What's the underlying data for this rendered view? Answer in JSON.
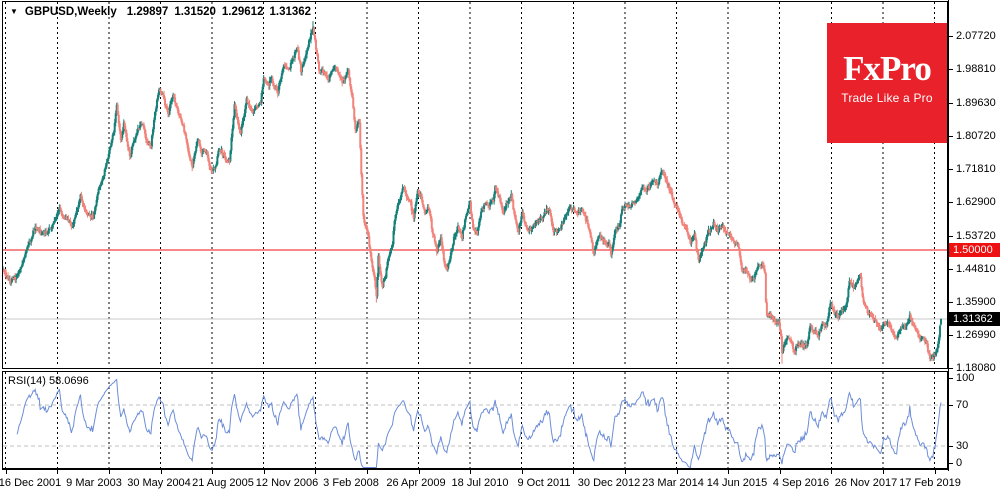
{
  "title": {
    "symbol_timeframe": "GBPUSD,Weekly",
    "open": "1.29897",
    "high": "1.31520",
    "low": "1.29612",
    "close": "1.31362"
  },
  "logo": {
    "brand": "FxPro",
    "tagline": "Trade Like a Pro",
    "bg_color": "#e8212b"
  },
  "axes": {
    "price_level_badge": "1.50000",
    "current_price_badge": "1.31362"
  },
  "rsi_panel": {
    "label": "RSI(14)",
    "value": "58.0696"
  },
  "colors": {
    "candle_up": "#178079",
    "candle_down": "#f2837b",
    "rsi_line": "#6c8dd8",
    "level_line_red": "#ee1111",
    "current_price_line": "#c8c8c8",
    "badge_black": "#000000",
    "logo_red": "#e8212b",
    "grid": "#000000",
    "rsi_level_dash": "#c0c0c0"
  },
  "chart_data": {
    "type": "candlestick",
    "title": "GBPUSD,Weekly",
    "timeframe": "weekly",
    "x_tick_labels": [
      "16 Dec 2001",
      "9 Mar 2003",
      "30 May 2004",
      "21 Aug 2005",
      "12 Nov 2006",
      "3 Feb 2008",
      "26 Apr 2009",
      "18 Jul 2010",
      "9 Oct 2011",
      "30 Dec 2012",
      "23 Mar 2014",
      "14 Jun 2015",
      "4 Sep 2016",
      "26 Nov 2017",
      "17 Feb 2019"
    ],
    "y_tick_labels": [
      "2.07720",
      "1.98810",
      "1.89630",
      "1.80720",
      "1.71810",
      "1.62900",
      "1.53720",
      "1.44810",
      "1.35900",
      "1.26990",
      "1.18080"
    ],
    "rsi_tick_labels": [
      "100",
      "70",
      "30",
      "0"
    ],
    "horizontal_level_line": 1.5,
    "current_price": 1.31362,
    "ylim_approx": [
      1.17,
      2.17
    ],
    "weeks_total": 932,
    "last_candle": {
      "open": 1.29897,
      "high": 1.3152,
      "low": 1.29612,
      "close": 1.31362
    },
    "close_path_weekly_anchors": [
      [
        0,
        1.445
      ],
      [
        7,
        1.415
      ],
      [
        13,
        1.425
      ],
      [
        20,
        1.47
      ],
      [
        27,
        1.525
      ],
      [
        32,
        1.565
      ],
      [
        38,
        1.545
      ],
      [
        45,
        1.555
      ],
      [
        51,
        1.575
      ],
      [
        56,
        1.615
      ],
      [
        60,
        1.59
      ],
      [
        64,
        1.585
      ],
      [
        69,
        1.565
      ],
      [
        77,
        1.645
      ],
      [
        83,
        1.595
      ],
      [
        90,
        1.59
      ],
      [
        95,
        1.665
      ],
      [
        100,
        1.7
      ],
      [
        106,
        1.775
      ],
      [
        110,
        1.82
      ],
      [
        113,
        1.895
      ],
      [
        117,
        1.8
      ],
      [
        120,
        1.84
      ],
      [
        126,
        1.755
      ],
      [
        133,
        1.82
      ],
      [
        139,
        1.845
      ],
      [
        143,
        1.785
      ],
      [
        147,
        1.785
      ],
      [
        151,
        1.87
      ],
      [
        155,
        1.93
      ],
      [
        159,
        1.915
      ],
      [
        164,
        1.865
      ],
      [
        169,
        1.92
      ],
      [
        174,
        1.875
      ],
      [
        179,
        1.835
      ],
      [
        186,
        1.745
      ],
      [
        188,
        1.725
      ],
      [
        193,
        1.8
      ],
      [
        197,
        1.765
      ],
      [
        202,
        1.77
      ],
      [
        206,
        1.715
      ],
      [
        211,
        1.725
      ],
      [
        215,
        1.775
      ],
      [
        220,
        1.75
      ],
      [
        225,
        1.74
      ],
      [
        230,
        1.89
      ],
      [
        236,
        1.815
      ],
      [
        242,
        1.905
      ],
      [
        248,
        1.87
      ],
      [
        252,
        1.89
      ],
      [
        256,
        1.9
      ],
      [
        259,
        1.97
      ],
      [
        263,
        1.945
      ],
      [
        267,
        1.96
      ],
      [
        273,
        1.925
      ],
      [
        279,
        2.005
      ],
      [
        284,
        1.99
      ],
      [
        288,
        2.015
      ],
      [
        292,
        2.05
      ],
      [
        296,
        1.985
      ],
      [
        302,
        2.04
      ],
      [
        308,
        2.105
      ],
      [
        311,
        2.045
      ],
      [
        314,
        1.985
      ],
      [
        319,
        1.98
      ],
      [
        323,
        1.965
      ],
      [
        327,
        1.985
      ],
      [
        331,
        1.99
      ],
      [
        337,
        1.955
      ],
      [
        343,
        1.98
      ],
      [
        347,
        1.915
      ],
      [
        350,
        1.825
      ],
      [
        354,
        1.845
      ],
      [
        356,
        1.705
      ],
      [
        358,
        1.59
      ],
      [
        360,
        1.565
      ],
      [
        363,
        1.535
      ],
      [
        365,
        1.49
      ],
      [
        367,
        1.455
      ],
      [
        369,
        1.43
      ],
      [
        371,
        1.37
      ],
      [
        373,
        1.48
      ],
      [
        375,
        1.43
      ],
      [
        377,
        1.405
      ],
      [
        380,
        1.43
      ],
      [
        382,
        1.465
      ],
      [
        387,
        1.52
      ],
      [
        390,
        1.6
      ],
      [
        394,
        1.635
      ],
      [
        398,
        1.67
      ],
      [
        400,
        1.655
      ],
      [
        403,
        1.635
      ],
      [
        405,
        1.625
      ],
      [
        408,
        1.585
      ],
      [
        412,
        1.66
      ],
      [
        415,
        1.645
      ],
      [
        419,
        1.595
      ],
      [
        423,
        1.615
      ],
      [
        427,
        1.545
      ],
      [
        431,
        1.5
      ],
      [
        435,
        1.535
      ],
      [
        439,
        1.455
      ],
      [
        441,
        1.445
      ],
      [
        444,
        1.48
      ],
      [
        448,
        1.53
      ],
      [
        452,
        1.56
      ],
      [
        456,
        1.535
      ],
      [
        460,
        1.59
      ],
      [
        464,
        1.625
      ],
      [
        467,
        1.555
      ],
      [
        471,
        1.545
      ],
      [
        475,
        1.6
      ],
      [
        479,
        1.625
      ],
      [
        483,
        1.62
      ],
      [
        487,
        1.635
      ],
      [
        489,
        1.67
      ],
      [
        493,
        1.645
      ],
      [
        497,
        1.6
      ],
      [
        501,
        1.63
      ],
      [
        505,
        1.645
      ],
      [
        509,
        1.58
      ],
      [
        512,
        1.555
      ],
      [
        516,
        1.6
      ],
      [
        520,
        1.56
      ],
      [
        524,
        1.555
      ],
      [
        528,
        1.57
      ],
      [
        532,
        1.585
      ],
      [
        536,
        1.585
      ],
      [
        540,
        1.61
      ],
      [
        543,
        1.61
      ],
      [
        547,
        1.55
      ],
      [
        551,
        1.55
      ],
      [
        555,
        1.565
      ],
      [
        559,
        1.59
      ],
      [
        563,
        1.615
      ],
      [
        567,
        1.61
      ],
      [
        571,
        1.6
      ],
      [
        575,
        1.615
      ],
      [
        579,
        1.585
      ],
      [
        583,
        1.55
      ],
      [
        587,
        1.49
      ],
      [
        591,
        1.535
      ],
      [
        595,
        1.535
      ],
      [
        598,
        1.52
      ],
      [
        602,
        1.515
      ],
      [
        604,
        1.49
      ],
      [
        608,
        1.55
      ],
      [
        612,
        1.56
      ],
      [
        615,
        1.61
      ],
      [
        619,
        1.62
      ],
      [
        623,
        1.62
      ],
      [
        627,
        1.63
      ],
      [
        631,
        1.64
      ],
      [
        635,
        1.67
      ],
      [
        639,
        1.66
      ],
      [
        643,
        1.675
      ],
      [
        647,
        1.685
      ],
      [
        651,
        1.68
      ],
      [
        655,
        1.715
      ],
      [
        659,
        1.685
      ],
      [
        663,
        1.66
      ],
      [
        667,
        1.625
      ],
      [
        671,
        1.61
      ],
      [
        675,
        1.565
      ],
      [
        679,
        1.565
      ],
      [
        683,
        1.515
      ],
      [
        687,
        1.54
      ],
      [
        691,
        1.475
      ],
      [
        694,
        1.49
      ],
      [
        697,
        1.515
      ],
      [
        701,
        1.55
      ],
      [
        704,
        1.555
      ],
      [
        706,
        1.575
      ],
      [
        710,
        1.55
      ],
      [
        714,
        1.57
      ],
      [
        718,
        1.55
      ],
      [
        722,
        1.545
      ],
      [
        726,
        1.52
      ],
      [
        730,
        1.52
      ],
      [
        734,
        1.45
      ],
      [
        738,
        1.45
      ],
      [
        740,
        1.44
      ],
      [
        742,
        1.42
      ],
      [
        746,
        1.42
      ],
      [
        750,
        1.46
      ],
      [
        754,
        1.46
      ],
      [
        757,
        1.435
      ],
      [
        758,
        1.365
      ],
      [
        759,
        1.325
      ],
      [
        763,
        1.325
      ],
      [
        767,
        1.31
      ],
      [
        771,
        1.3
      ],
      [
        773,
        1.27
      ],
      [
        774,
        1.22
      ],
      [
        776,
        1.245
      ],
      [
        778,
        1.26
      ],
      [
        782,
        1.26
      ],
      [
        786,
        1.23
      ],
      [
        788,
        1.235
      ],
      [
        792,
        1.245
      ],
      [
        796,
        1.24
      ],
      [
        800,
        1.255
      ],
      [
        802,
        1.295
      ],
      [
        806,
        1.28
      ],
      [
        810,
        1.27
      ],
      [
        814,
        1.3
      ],
      [
        818,
        1.29
      ],
      [
        822,
        1.36
      ],
      [
        826,
        1.33
      ],
      [
        830,
        1.32
      ],
      [
        834,
        1.34
      ],
      [
        838,
        1.355
      ],
      [
        841,
        1.415
      ],
      [
        845,
        1.4
      ],
      [
        849,
        1.415
      ],
      [
        852,
        1.43
      ],
      [
        855,
        1.355
      ],
      [
        859,
        1.335
      ],
      [
        863,
        1.32
      ],
      [
        867,
        1.31
      ],
      [
        871,
        1.285
      ],
      [
        875,
        1.305
      ],
      [
        879,
        1.305
      ],
      [
        883,
        1.285
      ],
      [
        887,
        1.26
      ],
      [
        891,
        1.285
      ],
      [
        895,
        1.295
      ],
      [
        899,
        1.3
      ],
      [
        901,
        1.32
      ],
      [
        905,
        1.3
      ],
      [
        909,
        1.27
      ],
      [
        913,
        1.26
      ],
      [
        917,
        1.255
      ],
      [
        921,
        1.205
      ],
      [
        925,
        1.21
      ],
      [
        928,
        1.23
      ],
      [
        930,
        1.265
      ],
      [
        931,
        1.3
      ],
      [
        932,
        1.31362
      ]
    ],
    "key_extremes": [
      {
        "week": 308,
        "high": 2.118
      },
      {
        "week": 230,
        "high": 1.902
      },
      {
        "week": 371,
        "low": 1.358
      },
      {
        "week": 852,
        "high": 1.438
      },
      {
        "week": 774,
        "low": 1.193
      },
      {
        "week": 921,
        "low": 1.199
      }
    ],
    "indicator": {
      "name": "RSI",
      "period": 14,
      "value": 58.0696,
      "range": [
        0,
        100
      ],
      "reference_levels": [
        30,
        70
      ]
    }
  }
}
